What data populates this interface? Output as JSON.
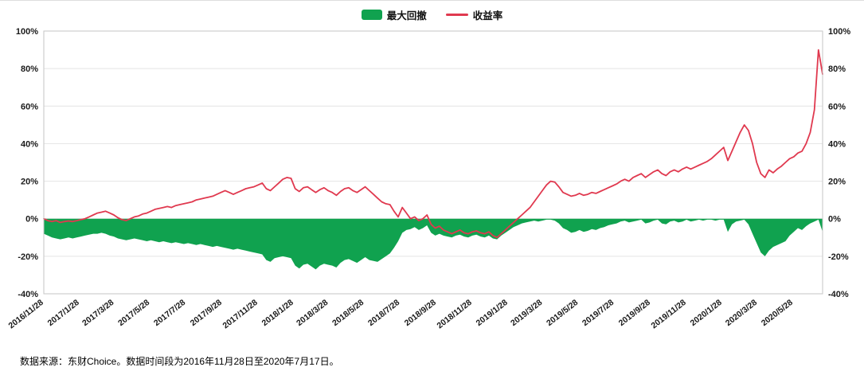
{
  "legend": {
    "drawdown_label": "最大回撤",
    "return_label": "收益率"
  },
  "footer": {
    "source_note": "数据来源：东财Choice。数据时间段为2016年11月28日至2020年7月17日。"
  },
  "colors": {
    "drawdown": "#10a24f",
    "return": "#e0394f",
    "grid": "#e4e4e4",
    "border": "#c6c6c6",
    "text": "#1a1a1a"
  },
  "chart_data": {
    "type": "area",
    "title": "",
    "x_start": "2016/11/28",
    "x_end": "2020/7/17",
    "y_unit": "%",
    "ylim": [
      -40,
      100
    ],
    "y_ticks": [
      100,
      80,
      60,
      40,
      20,
      0,
      -20,
      -40
    ],
    "grid": "horizontal",
    "legend_position": "top-center",
    "x_tick_labels": [
      "2016/11/28",
      "2017/1/28",
      "2017/3/28",
      "2017/5/28",
      "2017/7/28",
      "2017/9/28",
      "2017/11/28",
      "2018/1/28",
      "2018/3/28",
      "2018/5/28",
      "2018/7/28",
      "2018/9/28",
      "2018/11/28",
      "2019/1/28",
      "2019/3/28",
      "2019/5/28",
      "2019/7/28",
      "2019/9/28",
      "2019/11/28",
      "2020/1/28",
      "2020/3/28",
      "2020/5/28"
    ],
    "series": [
      {
        "name": "最大回撤",
        "type": "area",
        "color": "#10a24f",
        "values": [
          -8,
          -9,
          -10,
          -10.5,
          -11,
          -10.5,
          -10,
          -10.5,
          -10,
          -9.5,
          -9,
          -8.5,
          -8,
          -8,
          -7.5,
          -8,
          -9,
          -9.5,
          -10.5,
          -11,
          -11.5,
          -11,
          -10.5,
          -11,
          -11.5,
          -12,
          -11.5,
          -12,
          -12.5,
          -12,
          -12.5,
          -13,
          -12.5,
          -13,
          -13.5,
          -13,
          -13.5,
          -14,
          -13.5,
          -14,
          -14.5,
          -15,
          -14.5,
          -15,
          -15.5,
          -16,
          -16.5,
          -16,
          -16.5,
          -17,
          -17.5,
          -18,
          -18.5,
          -19,
          -22,
          -23,
          -21,
          -20.5,
          -20,
          -20.5,
          -21,
          -25,
          -26.5,
          -24.5,
          -24,
          -25.5,
          -27,
          -25,
          -24,
          -24.5,
          -25,
          -26,
          -23.5,
          -22,
          -21.5,
          -22.5,
          -23.5,
          -22,
          -20.5,
          -22,
          -22.5,
          -23,
          -21.5,
          -20,
          -18.5,
          -15.5,
          -12,
          -7.5,
          -6,
          -5.5,
          -4.5,
          -6,
          -5,
          -3.5,
          -7.5,
          -9,
          -8,
          -9,
          -9.5,
          -10,
          -9,
          -8.5,
          -9.5,
          -10,
          -9,
          -8.5,
          -9.5,
          -10,
          -9,
          -10.5,
          -11,
          -9,
          -7.5,
          -6,
          -4.5,
          -3.5,
          -2.5,
          -2,
          -1.5,
          -1,
          -1.5,
          -1,
          -0.5,
          -0.5,
          -1,
          -2.5,
          -5,
          -6,
          -7.5,
          -7,
          -6,
          -7,
          -6.5,
          -5.5,
          -6,
          -5,
          -4.5,
          -3.5,
          -3,
          -2.5,
          -1.5,
          -1,
          -2,
          -1.5,
          -1,
          -0.5,
          -2.5,
          -2,
          -1,
          -0.5,
          -2.5,
          -3,
          -1.5,
          -1,
          -2,
          -1.5,
          -0.5,
          -1.5,
          -1,
          -0.5,
          -1,
          -0.5,
          -0.5,
          -1,
          -0.5,
          -0.5,
          -7,
          -3,
          -1.5,
          -1,
          -0.5,
          -3,
          -8,
          -13,
          -18,
          -20,
          -17,
          -15,
          -14,
          -13,
          -12,
          -9,
          -7,
          -5,
          -6,
          -4,
          -2.5,
          -1.5,
          -0.5,
          -7
        ]
      },
      {
        "name": "收益率",
        "type": "line",
        "color": "#e0394f",
        "values": [
          0,
          -1,
          -1.5,
          -1,
          -2,
          -1.5,
          -1.2,
          -1.5,
          -1,
          -0.5,
          0,
          1,
          2,
          3,
          3.5,
          4,
          3,
          2,
          0.5,
          -0.5,
          -1,
          0,
          1,
          1.5,
          2.5,
          3,
          4,
          5,
          5.5,
          6,
          6.5,
          6,
          7,
          7.5,
          8,
          8.5,
          9,
          10,
          10.5,
          11,
          11.5,
          12,
          13,
          14,
          15,
          14,
          13,
          14,
          15,
          16,
          16.5,
          17,
          18,
          19,
          16,
          15,
          17,
          19,
          21,
          22,
          21.5,
          16,
          14.5,
          16.5,
          17,
          15.5,
          14,
          15.5,
          16.5,
          15,
          14,
          12.5,
          14.5,
          16,
          16.5,
          15,
          14,
          15.5,
          17,
          15,
          13,
          11,
          9,
          8,
          7.5,
          4,
          1,
          6,
          3,
          0,
          1,
          -1,
          0,
          2,
          -3,
          -5,
          -4,
          -6,
          -7,
          -8,
          -7,
          -6,
          -7.5,
          -8,
          -7,
          -6.5,
          -7.5,
          -8,
          -7,
          -9,
          -10,
          -8,
          -6,
          -4,
          -2,
          0,
          2,
          4,
          6,
          9,
          12,
          15,
          18,
          20,
          19.5,
          17,
          14,
          13,
          12,
          12.5,
          13.5,
          12.5,
          13,
          14,
          13.5,
          14.5,
          15.5,
          16.5,
          17.5,
          18.5,
          20,
          21,
          20,
          22,
          23,
          24,
          22,
          23.5,
          25,
          26,
          24,
          23,
          25,
          26,
          25,
          26.5,
          27.5,
          26.5,
          27.5,
          28.5,
          29.5,
          30.5,
          32,
          34,
          36,
          38,
          31,
          36,
          41,
          46,
          50,
          47,
          40,
          30,
          24,
          22,
          26,
          24.5,
          26.5,
          28,
          30,
          32,
          33,
          35,
          36,
          40,
          46,
          58,
          90,
          77
        ]
      }
    ]
  }
}
